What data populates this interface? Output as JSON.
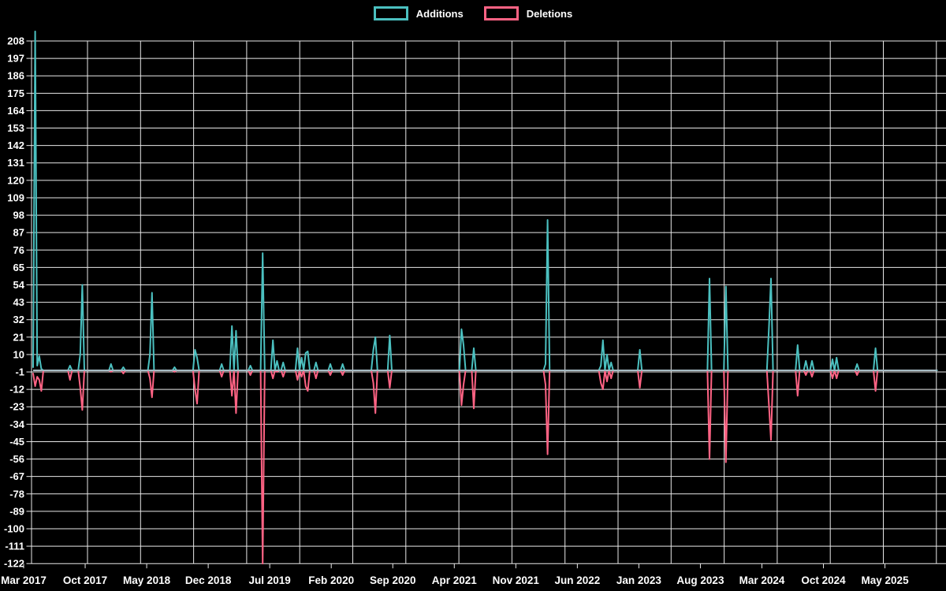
{
  "legend": {
    "position": "top",
    "items": [
      {
        "label": "Additions",
        "color": "#4bc0c0"
      },
      {
        "label": "Deletions",
        "color": "#ff6384"
      }
    ]
  },
  "chart_data": {
    "type": "line",
    "title": "",
    "background": "#000000",
    "grid": true,
    "gridline_color": "#e8e8e8",
    "baseline_overlap_color": "#a6bac3",
    "text_color": "#ffffff",
    "x_axis": {
      "unit": "weekly data points starting Mar 2017",
      "tick_labels": [
        "Mar 2017",
        "Oct 2017",
        "May 2018",
        "Dec 2018",
        "Jul 2019",
        "Feb 2020",
        "Sep 2020",
        "Apr 2021",
        "Nov 2021",
        "Jun 2022",
        "Jan 2023",
        "Aug 2023",
        "Mar 2024",
        "Oct 2024",
        "May 2025"
      ],
      "label_interval_months": 7,
      "vertical_gridline_interval_months": 6,
      "weeks_total": 442
    },
    "y_axis": {
      "min": -122,
      "max": 208,
      "step": 11,
      "tick_labels": [
        208,
        197,
        186,
        175,
        164,
        153,
        142,
        131,
        120,
        109,
        98,
        87,
        76,
        65,
        54,
        43,
        32,
        21,
        10,
        -1,
        -12,
        -23,
        -34,
        -45,
        -56,
        -67,
        -78,
        -89,
        -100,
        -111,
        -122
      ]
    },
    "series": [
      {
        "name": "Additions",
        "color": "#4bc0c0",
        "baseline": 0,
        "note": "sparse [week_index, value]; all unlisted weeks = 0; week 1 spike clipped at chart top",
        "points": [
          [
            0,
            2
          ],
          [
            1,
            214
          ],
          [
            2,
            3
          ],
          [
            3,
            9
          ],
          [
            4,
            1
          ],
          [
            18,
            3
          ],
          [
            23,
            10
          ],
          [
            24,
            54
          ],
          [
            38,
            4
          ],
          [
            44,
            2
          ],
          [
            57,
            10
          ],
          [
            58,
            49
          ],
          [
            69,
            2
          ],
          [
            79,
            13
          ],
          [
            80,
            8
          ],
          [
            92,
            4
          ],
          [
            97,
            28
          ],
          [
            99,
            25
          ],
          [
            106,
            3
          ],
          [
            112,
            74
          ],
          [
            117,
            19
          ],
          [
            119,
            6
          ],
          [
            122,
            5
          ],
          [
            129,
            14
          ],
          [
            131,
            8
          ],
          [
            133,
            11
          ],
          [
            134,
            12
          ],
          [
            138,
            5
          ],
          [
            145,
            4
          ],
          [
            151,
            4
          ],
          [
            166,
            13
          ],
          [
            167,
            21
          ],
          [
            174,
            22
          ],
          [
            209,
            26
          ],
          [
            210,
            16
          ],
          [
            215,
            14
          ],
          [
            250,
            4
          ],
          [
            251,
            95
          ],
          [
            277,
            3
          ],
          [
            278,
            19
          ],
          [
            280,
            10
          ],
          [
            282,
            5
          ],
          [
            296,
            13
          ],
          [
            330,
            58
          ],
          [
            338,
            53
          ],
          [
            359,
            27
          ],
          [
            360,
            58
          ],
          [
            373,
            16
          ],
          [
            377,
            6
          ],
          [
            380,
            6
          ],
          [
            390,
            7
          ],
          [
            392,
            8
          ],
          [
            402,
            4
          ],
          [
            411,
            14
          ]
        ]
      },
      {
        "name": "Deletions",
        "color": "#ff6384",
        "baseline": 0,
        "note": "sparse [week_index, value]; all unlisted weeks = 0",
        "points": [
          [
            0,
            -2
          ],
          [
            1,
            -10
          ],
          [
            2,
            -4
          ],
          [
            3,
            -6
          ],
          [
            4,
            -13
          ],
          [
            18,
            -6
          ],
          [
            23,
            -11
          ],
          [
            24,
            -25
          ],
          [
            38,
            -1
          ],
          [
            44,
            -2
          ],
          [
            57,
            -5
          ],
          [
            58,
            -17
          ],
          [
            69,
            -1
          ],
          [
            79,
            -12
          ],
          [
            80,
            -21
          ],
          [
            92,
            -4
          ],
          [
            97,
            -16
          ],
          [
            99,
            -27
          ],
          [
            106,
            -3
          ],
          [
            112,
            -122
          ],
          [
            117,
            -5
          ],
          [
            119,
            -1
          ],
          [
            122,
            -4
          ],
          [
            129,
            -6
          ],
          [
            131,
            -4
          ],
          [
            133,
            -10
          ],
          [
            134,
            -13
          ],
          [
            138,
            -5
          ],
          [
            145,
            -3
          ],
          [
            151,
            -3
          ],
          [
            166,
            -8
          ],
          [
            167,
            -27
          ],
          [
            174,
            -11
          ],
          [
            209,
            -22
          ],
          [
            210,
            -9
          ],
          [
            215,
            -24
          ],
          [
            250,
            -9
          ],
          [
            251,
            -53
          ],
          [
            277,
            -8
          ],
          [
            278,
            -12
          ],
          [
            280,
            -7
          ],
          [
            282,
            -5
          ],
          [
            296,
            -11
          ],
          [
            330,
            -56
          ],
          [
            338,
            -58
          ],
          [
            359,
            -22
          ],
          [
            360,
            -44
          ],
          [
            373,
            -16
          ],
          [
            377,
            -3
          ],
          [
            380,
            -4
          ],
          [
            390,
            -5
          ],
          [
            392,
            -5
          ],
          [
            402,
            -3
          ],
          [
            411,
            -13
          ]
        ]
      }
    ]
  }
}
